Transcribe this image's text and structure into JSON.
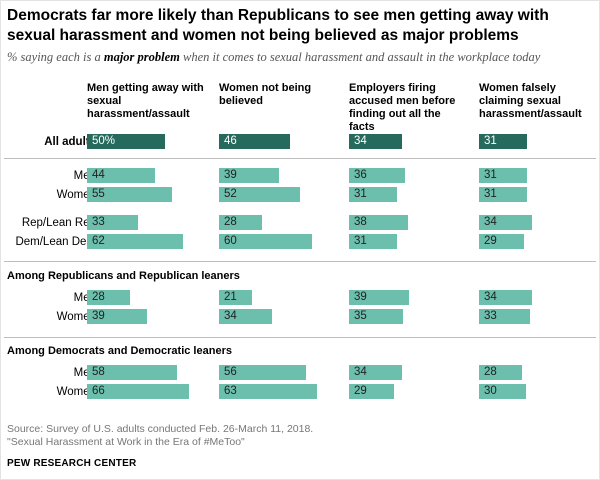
{
  "title": "Democrats far more likely than Republicans to see men getting away with sexual harassment and women not being believed as major problems",
  "subtitle_pre": "% saying each is a ",
  "subtitle_em": "major problem",
  "subtitle_post": " when it comes to sexual harassment and assault in the workplace today",
  "source_line1": "Source: Survey of U.S. adults conducted Feb. 26-March 11, 2018.",
  "source_line2": "\"Sexual Harassment at Work in the Era of #MeToo\"",
  "brand": "PEW RESEARCH CENTER",
  "colors": {
    "bar": "#6cbfad",
    "bar_highlight": "#256a5c"
  },
  "chart_data": {
    "type": "bar",
    "columns": [
      "Men getting away with sexual harassment/assault",
      "Women not being believed",
      "Employers firing accused men before finding out all the facts",
      "Women falsely claiming sexual harassment/assault"
    ],
    "sections": [
      "Among Republicans and Republican leaners",
      "Among Democrats and Democratic leaners"
    ],
    "rows": [
      {
        "label": "All adults",
        "values": [
          50,
          46,
          34,
          31
        ],
        "display": [
          "50%",
          "46",
          "34",
          "31"
        ],
        "highlight": true
      },
      {
        "label": "Men",
        "values": [
          44,
          39,
          36,
          31
        ]
      },
      {
        "label": "Women",
        "values": [
          55,
          52,
          31,
          31
        ]
      },
      {
        "label": "Rep/Lean Rep",
        "values": [
          33,
          28,
          38,
          34
        ]
      },
      {
        "label": "Dem/Lean Dem",
        "values": [
          62,
          60,
          31,
          29
        ]
      },
      {
        "label": "Men",
        "values": [
          28,
          21,
          39,
          34
        ],
        "section": 0
      },
      {
        "label": "Women",
        "values": [
          39,
          34,
          35,
          33
        ],
        "section": 0
      },
      {
        "label": "Men",
        "values": [
          58,
          56,
          34,
          28
        ],
        "section": 1
      },
      {
        "label": "Women",
        "values": [
          66,
          63,
          29,
          30
        ],
        "section": 1
      }
    ]
  }
}
